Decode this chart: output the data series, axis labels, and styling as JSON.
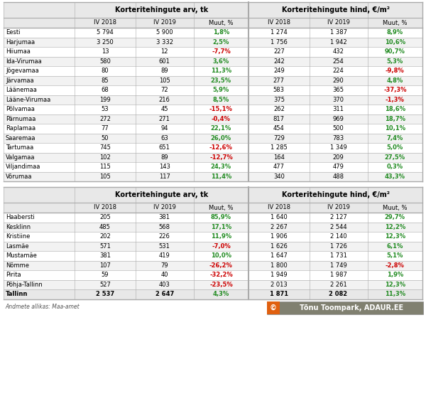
{
  "table1": {
    "rows": [
      [
        "Eesti",
        "5 794",
        "5 900",
        "1,8%",
        "1 274",
        "1 387",
        "8,9%"
      ],
      [
        "Harjumaa",
        "3 250",
        "3 332",
        "2,5%",
        "1 756",
        "1 942",
        "10,6%"
      ],
      [
        "Hiiumaa",
        "13",
        "12",
        "-7,7%",
        "227",
        "432",
        "90,7%"
      ],
      [
        "Ida-Virumaa",
        "580",
        "601",
        "3,6%",
        "242",
        "254",
        "5,3%"
      ],
      [
        "Jõgevamaa",
        "80",
        "89",
        "11,3%",
        "249",
        "224",
        "-9,8%"
      ],
      [
        "Järvamaa",
        "85",
        "105",
        "23,5%",
        "277",
        "290",
        "4,8%"
      ],
      [
        "Läänemaa",
        "68",
        "72",
        "5,9%",
        "583",
        "365",
        "-37,3%"
      ],
      [
        "Lääne-Virumaa",
        "199",
        "216",
        "8,5%",
        "375",
        "370",
        "-1,3%"
      ],
      [
        "Põlvamaa",
        "53",
        "45",
        "-15,1%",
        "262",
        "311",
        "18,6%"
      ],
      [
        "Pärnumaa",
        "272",
        "271",
        "-0,4%",
        "817",
        "969",
        "18,7%"
      ],
      [
        "Raplamaa",
        "77",
        "94",
        "22,1%",
        "454",
        "500",
        "10,1%"
      ],
      [
        "Saaremaa",
        "50",
        "63",
        "26,0%",
        "729",
        "783",
        "7,4%"
      ],
      [
        "Tartumaa",
        "745",
        "651",
        "-12,6%",
        "1 285",
        "1 349",
        "5,0%"
      ],
      [
        "Valgamaa",
        "102",
        "89",
        "-12,7%",
        "164",
        "209",
        "27,5%"
      ],
      [
        "Viljandimaa",
        "115",
        "143",
        "24,3%",
        "477",
        "479",
        "0,3%"
      ],
      [
        "Võrumaa",
        "105",
        "117",
        "11,4%",
        "340",
        "488",
        "43,3%"
      ]
    ]
  },
  "table2": {
    "rows": [
      [
        "Haabersti",
        "205",
        "381",
        "85,9%",
        "1 640",
        "2 127",
        "29,7%"
      ],
      [
        "Kesklinn",
        "485",
        "568",
        "17,1%",
        "2 267",
        "2 544",
        "12,2%"
      ],
      [
        "Kristiine",
        "202",
        "226",
        "11,9%",
        "1 906",
        "2 140",
        "12,3%"
      ],
      [
        "Lasmäe",
        "571",
        "531",
        "-7,0%",
        "1 626",
        "1 726",
        "6,1%"
      ],
      [
        "Mustamäe",
        "381",
        "419",
        "10,0%",
        "1 647",
        "1 731",
        "5,1%"
      ],
      [
        "Nõmme",
        "107",
        "79",
        "-26,2%",
        "1 800",
        "1 749",
        "-2,8%"
      ],
      [
        "Pirita",
        "59",
        "40",
        "-32,2%",
        "1 949",
        "1 987",
        "1,9%"
      ],
      [
        "Põhja-Tallinn",
        "527",
        "403",
        "-23,5%",
        "2 013",
        "2 261",
        "12,3%"
      ],
      [
        "Tallinn",
        "2 537",
        "2 647",
        "4,3%",
        "1 871",
        "2 082",
        "11,3%"
      ]
    ]
  },
  "col_header1": "Korteritehingute arv, tk",
  "col_header2": "Korteritehingute hind, €/m²",
  "sub_headers": [
    "IV 2018",
    "IV 2019",
    "Muut, %"
  ],
  "footer": "Andmete allikas: Maa-amet",
  "watermark": "© Tõnu Toompark, ADAUR.EE",
  "bg_color": "#ffffff",
  "header_bg": "#e8e8e8",
  "border_color": "#aaaaaa",
  "green_color": "#228B22",
  "red_color": "#cc0000",
  "normal_row_bg": "#ffffff",
  "watermark_bg": "#808070",
  "watermark_orange": "#e06010",
  "watermark_text": "#ffffff"
}
